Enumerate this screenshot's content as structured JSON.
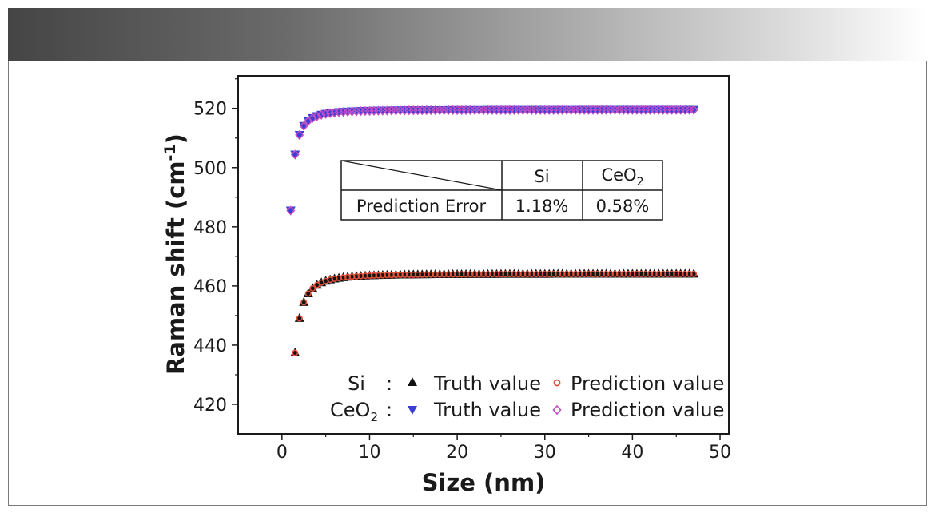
{
  "chart_data": {
    "type": "scatter",
    "xlabel": "Size (nm)",
    "ylabel_main": "Raman shift (cm",
    "ylabel_sup": "-1",
    "ylabel_close": ")",
    "xlim": [
      -5,
      51
    ],
    "ylim": [
      410,
      531
    ],
    "xticks": [
      0,
      10,
      20,
      30,
      40,
      50
    ],
    "yticks": [
      420,
      440,
      460,
      480,
      500,
      520
    ],
    "xtick_labels": [
      "0",
      "10",
      "20",
      "30",
      "40",
      "50"
    ],
    "ytick_labels": [
      "420",
      "440",
      "460",
      "480",
      "500",
      "520"
    ],
    "si_model": {
      "x_start": 0.5,
      "x_end": 47,
      "x_step": 0.5,
      "y_inf": 464.2,
      "a": 60
    },
    "ceo2_model": {
      "x_start": 0.5,
      "x_end": 47,
      "x_step": 0.5,
      "y_inf": 519.5,
      "a": 34
    },
    "series": [
      {
        "group": "Si",
        "name": "Truth value",
        "marker": "triangle-up",
        "color": "#111111"
      },
      {
        "group": "Si",
        "name": "Prediction value",
        "marker": "circle-open",
        "color": "#e0503a"
      },
      {
        "group": "CeO2",
        "name": "Truth value",
        "marker": "triangle-down",
        "color": "#3b3fd6"
      },
      {
        "group": "CeO2",
        "name": "Prediction value",
        "marker": "diamond-open",
        "color": "#c24fc4"
      }
    ],
    "legend": {
      "si_label": "Si",
      "ceo2_label": "CeO",
      "ceo2_sub": "2",
      "colon": ":",
      "truth": "Truth value",
      "prediction": "Prediction value",
      "placement": "bottom-right"
    },
    "inset_table": {
      "header_si": "Si",
      "header_ceo2": "CeO",
      "header_ceo2_sub": "2",
      "row_label": "Prediction Error",
      "si_error": "1.18%",
      "ceo2_error": "0.58%"
    }
  }
}
